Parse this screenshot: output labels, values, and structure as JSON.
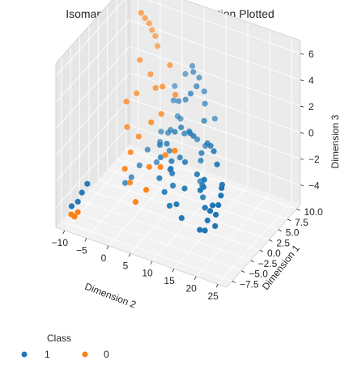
{
  "chart_data": {
    "type": "scatter",
    "projection": "3d",
    "title": "Isomap 3nd Dimension Reduction Plotted",
    "xlabel": "Dimension 2",
    "ylabel": "Dimension 1",
    "zlabel": "Dimension 3",
    "xlim": [
      -12,
      27
    ],
    "ylim": [
      -9,
      11
    ],
    "zlim": [
      -5.5,
      7
    ],
    "xticks": [
      -10,
      -5,
      0,
      5,
      10,
      15,
      20,
      25
    ],
    "xtick_labels": [
      "−10",
      "−5",
      "0",
      "5",
      "10",
      "15",
      "20",
      "25"
    ],
    "yticks": [
      -7.5,
      -5.0,
      -2.5,
      0.0,
      2.5,
      5.0,
      7.5,
      10.0
    ],
    "ytick_labels": [
      "−7.5",
      "−5.0",
      "−2.5",
      "0.0",
      "2.5",
      "5.0",
      "7.5",
      "10.0"
    ],
    "zticks": [
      -4,
      -2,
      0,
      2,
      4,
      6
    ],
    "ztick_labels": [
      "−4",
      "−2",
      "0",
      "2",
      "4",
      "6"
    ],
    "grid": true,
    "legend": {
      "title": "Class",
      "placement": "bottom-left"
    },
    "colors": {
      "1": "#1f77b4",
      "0": "#ff7f0e"
    },
    "series": [
      {
        "name": "1",
        "points": [
          [
            -10.5,
            -6.5,
            -4.5
          ],
          [
            -9.5,
            -6.0,
            -4.2
          ],
          [
            -9.0,
            -5.5,
            -3.6
          ],
          [
            -8.2,
            -5.0,
            -3.0
          ],
          [
            -2.0,
            4.0,
            -2.5
          ],
          [
            0.0,
            5.0,
            -2.0
          ],
          [
            1.0,
            6.0,
            -1.5
          ],
          [
            2.0,
            5.5,
            -1.0
          ],
          [
            3.0,
            4.0,
            -2.0
          ],
          [
            4.0,
            3.0,
            -3.0
          ],
          [
            5.0,
            2.0,
            -2.5
          ],
          [
            6.0,
            1.0,
            -1.5
          ],
          [
            7.0,
            0.0,
            -2.0
          ],
          [
            8.0,
            -1.0,
            -2.5
          ],
          [
            4.5,
            1.5,
            -0.5
          ],
          [
            5.5,
            2.5,
            0.2
          ],
          [
            6.5,
            3.0,
            0.5
          ],
          [
            7.5,
            4.0,
            0.0
          ],
          [
            8.5,
            5.0,
            -0.8
          ],
          [
            9.5,
            6.0,
            -1.5
          ],
          [
            10.0,
            4.0,
            -3.5
          ],
          [
            11.0,
            3.0,
            -1.5
          ],
          [
            12.0,
            2.0,
            -0.5
          ],
          [
            13.0,
            1.0,
            -2.5
          ],
          [
            14.0,
            0.0,
            -3.0
          ],
          [
            15.0,
            -1.0,
            -1.8
          ],
          [
            16.0,
            -2.0,
            -0.8
          ],
          [
            17.0,
            -3.0,
            -2.5
          ],
          [
            18.0,
            -3.5,
            -3.2
          ],
          [
            19.0,
            -4.0,
            -2.2
          ],
          [
            20.0,
            -4.5,
            -1.5
          ],
          [
            21.0,
            -5.0,
            -2.8
          ],
          [
            22.0,
            -6.0,
            -1.5
          ],
          [
            23.0,
            -6.5,
            -0.5
          ],
          [
            24.0,
            -7.0,
            0.5
          ],
          [
            25.0,
            -8.0,
            1.5
          ],
          [
            20.5,
            -2.5,
            -0.5
          ],
          [
            18.5,
            -1.5,
            0.5
          ],
          [
            16.5,
            0.0,
            0.8
          ],
          [
            14.5,
            1.5,
            0.5
          ],
          [
            12.5,
            3.0,
            0.0
          ],
          [
            10.5,
            4.5,
            1.0
          ],
          [
            9.0,
            6.5,
            1.5
          ],
          [
            8.0,
            7.5,
            2.0
          ],
          [
            6.0,
            8.5,
            2.5
          ],
          [
            4.0,
            9.0,
            3.0
          ],
          [
            2.0,
            9.5,
            2.0
          ],
          [
            0.0,
            9.0,
            1.0
          ],
          [
            1.0,
            7.5,
            0.5
          ],
          [
            3.0,
            6.5,
            1.0
          ],
          [
            5.0,
            6.0,
            1.5
          ],
          [
            7.0,
            5.0,
            2.5
          ],
          [
            2.5,
            2.0,
            -1.0
          ],
          [
            3.5,
            1.0,
            -1.5
          ],
          [
            4.5,
            -0.5,
            -2.5
          ],
          [
            6.5,
            -1.5,
            -3.0
          ],
          [
            8.5,
            -2.5,
            -3.5
          ],
          [
            10.5,
            -3.0,
            -3.0
          ],
          [
            12.5,
            -4.0,
            -3.5
          ],
          [
            11.5,
            -2.0,
            -2.0
          ],
          [
            9.5,
            0.5,
            -1.0
          ],
          [
            7.5,
            1.5,
            -1.2
          ],
          [
            13.5,
            -1.0,
            -1.0
          ],
          [
            15.5,
            -2.5,
            -1.5
          ],
          [
            17.5,
            -5.0,
            -3.5
          ],
          [
            19.5,
            -6.0,
            -3.0
          ],
          [
            3.0,
            7.0,
            -0.5
          ],
          [
            1.5,
            8.0,
            -0.8
          ],
          [
            -1.0,
            6.5,
            -1.8
          ],
          [
            -3.0,
            3.0,
            -3.5
          ],
          [
            -4.0,
            2.0,
            -4.2
          ],
          [
            -5.0,
            1.5,
            -4.6
          ],
          [
            0.5,
            3.5,
            -3.0
          ],
          [
            6.0,
            4.5,
            -0.5
          ],
          [
            9.0,
            2.5,
            0.5
          ],
          [
            11.0,
            1.0,
            1.0
          ],
          [
            5.5,
            7.5,
            3.2
          ],
          [
            7.5,
            6.0,
            2.8
          ],
          [
            10.0,
            8.0,
            0.0
          ]
        ]
      },
      {
        "name": "0",
        "points": [
          [
            -9.0,
            -7.5,
            -4.8
          ],
          [
            -9.5,
            -7.8,
            -4.6
          ],
          [
            -8.5,
            -7.2,
            -4.5
          ],
          [
            -6.0,
            7.0,
            6.5
          ],
          [
            -5.5,
            7.5,
            6.0
          ],
          [
            -5.0,
            8.0,
            5.5
          ],
          [
            -4.5,
            8.2,
            5.0
          ],
          [
            -4.0,
            8.5,
            4.5
          ],
          [
            -3.5,
            8.5,
            3.8
          ],
          [
            -5.0,
            5.5,
            3.5
          ],
          [
            -3.0,
            6.0,
            2.5
          ],
          [
            -1.0,
            5.0,
            2.0
          ],
          [
            1.0,
            4.5,
            2.5
          ],
          [
            2.0,
            3.0,
            1.0
          ],
          [
            0.5,
            2.0,
            0.5
          ],
          [
            -1.5,
            1.0,
            -0.5
          ],
          [
            -2.5,
            0.0,
            -1.5
          ],
          [
            -3.0,
            -1.0,
            -2.5
          ],
          [
            -1.0,
            -2.0,
            -3.0
          ],
          [
            2.0,
            -4.0,
            -3.5
          ],
          [
            4.0,
            -3.5,
            -2.5
          ],
          [
            6.0,
            -2.0,
            -1.0
          ],
          [
            8.0,
            -0.5,
            0.0
          ],
          [
            5.0,
            0.5,
            -1.0
          ],
          [
            3.0,
            -1.5,
            -1.5
          ],
          [
            -6.0,
            3.0,
            1.0
          ],
          [
            -5.0,
            2.0,
            -0.5
          ],
          [
            -4.5,
            4.0,
            1.5
          ],
          [
            1.0,
            6.5,
            3.5
          ],
          [
            3.5,
            5.0,
            2.0
          ]
        ]
      }
    ]
  }
}
